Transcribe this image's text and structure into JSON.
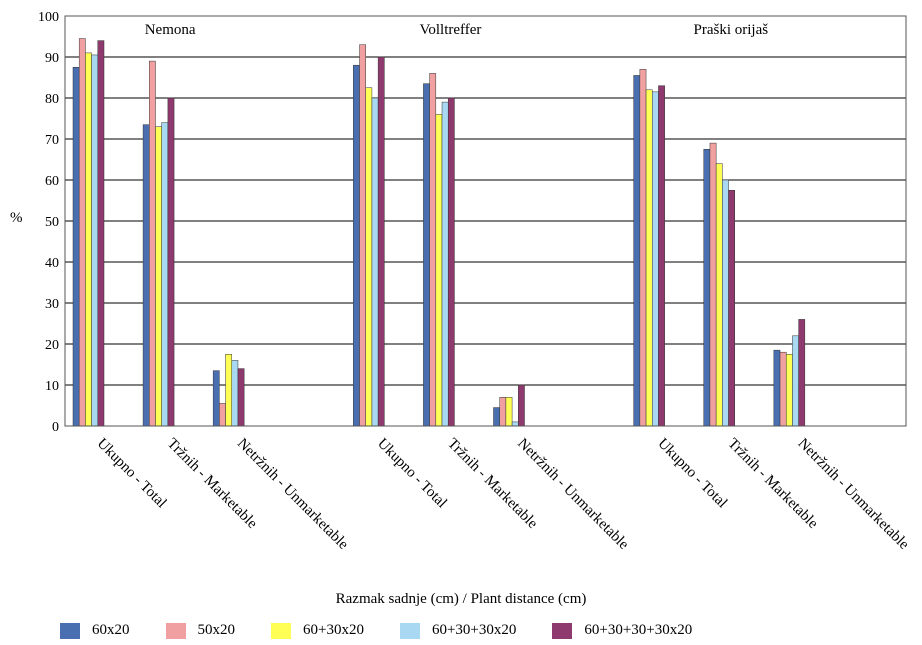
{
  "chart_data": {
    "type": "bar",
    "ylabel": "%",
    "xlabel": "Razmak sadnje (cm) / Plant distance (cm)",
    "ylim": [
      0,
      100
    ],
    "yticks": [
      0,
      10,
      20,
      30,
      40,
      50,
      60,
      70,
      80,
      90,
      100
    ],
    "grid": true,
    "legend_position": "bottom",
    "groups": [
      {
        "name": "Nemona",
        "categories": [
          "Ukupno - Total",
          "Tržnih - Marketable",
          "Netržnih - Unmarketable"
        ]
      },
      {
        "name": "Volltreffer",
        "categories": [
          "Ukupno - Total",
          "Tržnih - Marketable",
          "Netržnih - Unmarketable"
        ]
      },
      {
        "name": "Praški orijaš",
        "categories": [
          "Ukupno - Total",
          "Tržnih - Marketable",
          "Netržnih - Unmarketable"
        ]
      }
    ],
    "series": [
      {
        "name": "60x20",
        "color": "#4a6fb0",
        "values": [
          87.5,
          73.5,
          13.5,
          88,
          83.5,
          4.5,
          85.5,
          67.5,
          18.5
        ]
      },
      {
        "name": "50x20",
        "color": "#f0a0a0",
        "values": [
          94.5,
          89,
          5.5,
          93,
          86,
          7,
          87,
          69,
          18
        ]
      },
      {
        "name": "60+30x20",
        "color": "#ffff55",
        "values": [
          91,
          73,
          17.5,
          82.5,
          76,
          7,
          82,
          64,
          17.5
        ]
      },
      {
        "name": "60+30+30x20",
        "color": "#a9d8f2",
        "values": [
          90.5,
          74,
          16,
          80,
          79,
          1,
          81.5,
          60,
          22
        ]
      },
      {
        "name": "60+30+30+30x20",
        "color": "#8e3a6e",
        "values": [
          94,
          80,
          14,
          90,
          80,
          10,
          83,
          57.5,
          26
        ]
      }
    ]
  }
}
